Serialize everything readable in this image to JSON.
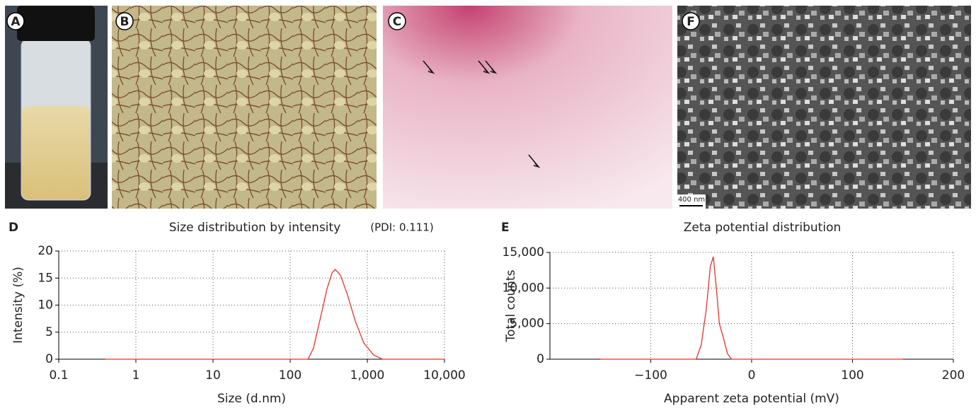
{
  "panels": [
    {
      "label": "A"
    },
    {
      "label": "B"
    },
    {
      "label": "C"
    },
    {
      "label": "F",
      "scale_bar": "400 nm"
    }
  ],
  "chart_data": [
    {
      "type": "line",
      "panel_label": "D",
      "title": "Size distribution by intensity",
      "annotation": "(PDI: 0.111)",
      "x_label": "Size (d.nm)",
      "y_label": "Intensity (%)",
      "xscale": "log",
      "grid": true,
      "xlim": [
        0.1,
        10000
      ],
      "ylim": [
        0,
        20
      ],
      "xticks": [
        0.1,
        1,
        10,
        100,
        {
          "value": 1000,
          "label": "1,000"
        },
        {
          "value": 10000,
          "label": "10,000"
        }
      ],
      "yticks": [
        0,
        5,
        10,
        15,
        20
      ],
      "series": [
        {
          "color": "#e8312a",
          "x": [
            0.4,
            1,
            10,
            100,
            170,
            200,
            250,
            300,
            350,
            384,
            450,
            550,
            700,
            900,
            1200,
            1570,
            10000
          ],
          "values": [
            0,
            0,
            0,
            0,
            0,
            2,
            8,
            13,
            16,
            16.6,
            15.5,
            12,
            7,
            3,
            0.8,
            0,
            0
          ]
        }
      ]
    },
    {
      "type": "line",
      "panel_label": "E",
      "title": "Zeta potential distribution",
      "x_label": "Apparent zeta potential (mV)",
      "y_label": "Total counts",
      "grid": true,
      "xlim": [
        -200,
        200
      ],
      "ylim": [
        0,
        15000
      ],
      "xticks": [
        {
          "value": -100,
          "label": "−100"
        },
        0,
        100,
        200
      ],
      "yticks": [
        0,
        {
          "value": 5000,
          "label": "5,000"
        },
        {
          "value": 10000,
          "label": "10,000"
        },
        {
          "value": 15000,
          "label": "15,000"
        }
      ],
      "series": [
        {
          "color": "#e8312a",
          "x": [
            -150,
            -55,
            -50,
            -45,
            -41,
            -38,
            -35,
            -32,
            -28,
            -24,
            -20,
            150
          ],
          "values": [
            0,
            0,
            2000,
            7000,
            13000,
            14400,
            10000,
            5000,
            3000,
            800,
            0,
            0
          ]
        }
      ]
    }
  ]
}
